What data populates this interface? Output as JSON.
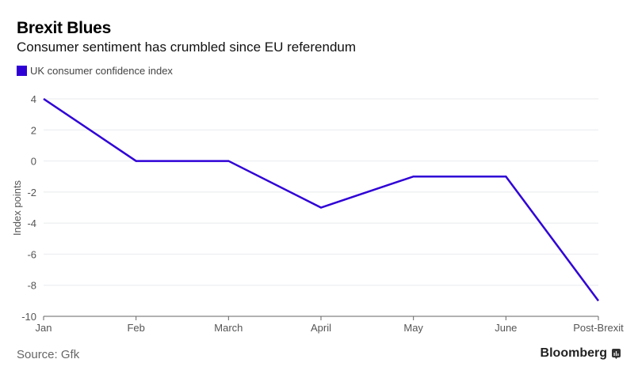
{
  "header": {
    "title": "Brexit Blues",
    "subtitle": "Consumer sentiment has crumbled since EU referendum"
  },
  "legend": {
    "items": [
      {
        "label": "UK consumer confidence index",
        "color": "#2f00d6"
      }
    ]
  },
  "footer": {
    "source": "Source: Gfk",
    "brand": "Bloomberg",
    "brand_icon": "bloomberg-chart-icon"
  },
  "chart_data": {
    "type": "line",
    "title": "Brexit Blues",
    "subtitle": "Consumer sentiment has crumbled since EU referendum",
    "xlabel": "",
    "ylabel": "Index points",
    "categories": [
      "Jan",
      "Feb",
      "March",
      "April",
      "May",
      "June",
      "Post-Brexit"
    ],
    "series": [
      {
        "name": "UK consumer confidence index",
        "color": "#2f00d6",
        "values": [
          4,
          0,
          0,
          -3,
          -1,
          -1,
          -9
        ]
      }
    ],
    "ylim": [
      -10,
      4
    ],
    "yticks": [
      4,
      2,
      0,
      -2,
      -4,
      -6,
      -8,
      -10
    ],
    "grid": true,
    "legend_position": "top-left"
  }
}
